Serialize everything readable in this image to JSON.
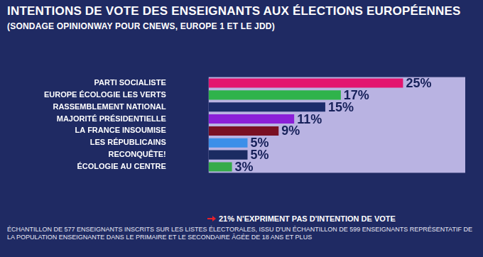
{
  "chart_data": {
    "type": "bar",
    "orientation": "horizontal",
    "title": "INTENTIONS DE VOTE DES ENSEIGNANTS AUX ÉLECTIONS EUROPÉENNES",
    "subtitle": "(SONDAGE OPINIONWAY POUR CNEWS, EUROPE 1 ET LE JDD)",
    "categories": [
      "PARTI SOCIALISTE",
      "EUROPE ÉCOLOGIE LES VERTS",
      "RASSEMBLEMENT NATIONAL",
      "MAJORITÉ PRÉSIDENTIELLE",
      "LA FRANCE INSOUMISE",
      "LES RÉPUBLICAINS",
      "RECONQUÊTE!",
      "ÉCOLOGIE AU CENTRE"
    ],
    "values": [
      25,
      17,
      15,
      11,
      9,
      5,
      5,
      3
    ],
    "value_labels": [
      "25%",
      "17%",
      "15%",
      "11%",
      "9%",
      "5%",
      "5%",
      "3%"
    ],
    "colors": [
      "#e3156f",
      "#2fb34b",
      "#1b2c6b",
      "#8b1fd8",
      "#7a1023",
      "#3b8fe9",
      "#1b2c62",
      "#35ab4a"
    ],
    "xlim": [
      0,
      33
    ],
    "data_labels": true,
    "tick_labels": "y",
    "grid": false,
    "annotations": [
      "21% N'EXPRIMENT PAS D'INTENTION DE VOTE",
      "ÉCHANTILLON DE 577 ENSEIGNANTS INSCRITS SUR LES LISTES ÉLECTORALES, ISSU D'UN ÉCHANTILLON DE 599 ENSEIGNANTS REPRÉSENTATIF DE LA POPULATION ENSEIGNANTE DANS LE PRIMAIRE ET LE SECONDAIRE ÂGÉE DE 18 ANS ET PLUS"
    ]
  }
}
